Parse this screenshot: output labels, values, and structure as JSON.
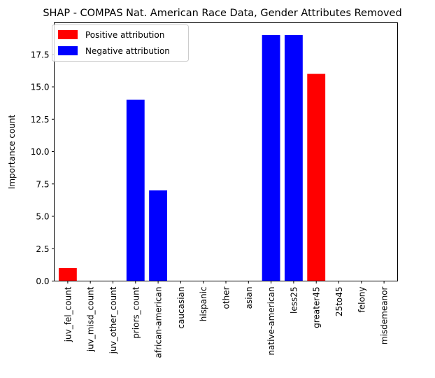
{
  "chart_data": {
    "type": "bar",
    "title": "SHAP - COMPAS Nat. American Race Data, Gender Attributes Removed",
    "xlabel": "",
    "ylabel": "Importance count",
    "categories": [
      "juv_fel_count",
      "juv_misd_count",
      "juv_other_count",
      "priors_count",
      "african-american",
      "caucasian",
      "hispanic",
      "other",
      "asian",
      "native-american",
      "less25",
      "greater45",
      "25to45",
      "felony",
      "misdemeanor"
    ],
    "values": [
      1,
      0,
      0,
      14,
      7,
      0,
      0,
      0,
      0,
      19,
      19,
      16,
      0,
      0,
      0
    ],
    "attribution": [
      "positive",
      "none",
      "none",
      "negative",
      "negative",
      "none",
      "none",
      "none",
      "none",
      "negative",
      "negative",
      "positive",
      "none",
      "none",
      "none"
    ],
    "yticks": [
      "0.0",
      "2.5",
      "5.0",
      "7.5",
      "10.0",
      "12.5",
      "15.0",
      "17.5"
    ],
    "ylim": [
      0,
      19.95
    ],
    "legend": {
      "placement": "top-left",
      "items": [
        {
          "label": "Positive attribution",
          "color": "#ff0000"
        },
        {
          "label": "Negative attribution",
          "color": "#0000ff"
        }
      ]
    },
    "colors": {
      "positive": "#ff0000",
      "negative": "#0000ff"
    },
    "grid": false
  }
}
